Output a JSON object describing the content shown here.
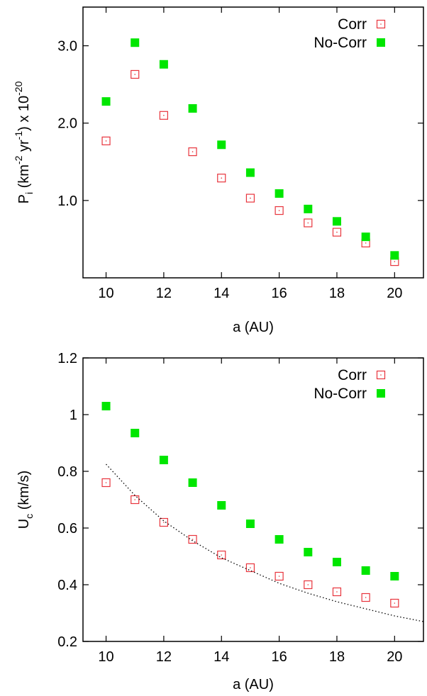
{
  "chart_data": [
    {
      "type": "scatter",
      "xlabel": "a (AU)",
      "ylabel_main": "P",
      "ylabel_sub": "i",
      "ylabel_rest": " (km",
      "ylabel_exp1": "-2",
      "ylabel_mid": " yr",
      "ylabel_exp2": "-1",
      "ylabel_tail": ") x 10",
      "ylabel_exp3": "-20",
      "xlim": [
        9.2,
        21
      ],
      "ylim": [
        0.0,
        3.5
      ],
      "x_ticks": [
        10,
        12,
        14,
        16,
        18,
        20
      ],
      "y_ticks": [
        1.0,
        2.0,
        3.0
      ],
      "y_tick_labels": [
        "1.0",
        "2.0",
        "3.0"
      ],
      "grid": false,
      "legend_position": "top-right",
      "series": [
        {
          "name": "Corr",
          "marker": "open-square",
          "color": "#e8343c",
          "x": [
            10,
            11,
            12,
            13,
            14,
            15,
            16,
            17,
            18,
            19,
            20
          ],
          "y": [
            1.77,
            2.63,
            2.1,
            1.63,
            1.29,
            1.03,
            0.87,
            0.71,
            0.59,
            0.45,
            0.21
          ]
        },
        {
          "name": "No-Corr",
          "marker": "filled-square",
          "color": "#00e600",
          "x": [
            10,
            11,
            12,
            13,
            14,
            15,
            16,
            17,
            18,
            19,
            20
          ],
          "y": [
            2.28,
            3.04,
            2.76,
            2.19,
            1.72,
            1.36,
            1.09,
            0.89,
            0.73,
            0.53,
            0.29
          ]
        }
      ]
    },
    {
      "type": "scatter",
      "xlabel": "a (AU)",
      "ylabel_main": "U",
      "ylabel_sub": "c",
      "ylabel_rest": " (km/s)",
      "xlim": [
        9.2,
        21
      ],
      "ylim": [
        0.2,
        1.2
      ],
      "x_ticks": [
        10,
        12,
        14,
        16,
        18,
        20
      ],
      "y_ticks": [
        0.2,
        0.4,
        0.6,
        0.8,
        1.0,
        1.2
      ],
      "y_tick_labels": [
        "0.2",
        "0.4",
        "0.6",
        "0.8",
        "1",
        "1.2"
      ],
      "grid": false,
      "legend_position": "top-right",
      "series": [
        {
          "name": "Corr",
          "marker": "open-square",
          "color": "#e8343c",
          "x": [
            10,
            11,
            12,
            13,
            14,
            15,
            16,
            17,
            18,
            19,
            20
          ],
          "y": [
            0.76,
            0.7,
            0.62,
            0.56,
            0.505,
            0.46,
            0.43,
            0.4,
            0.375,
            0.355,
            0.335
          ]
        },
        {
          "name": "No-Corr",
          "marker": "filled-square",
          "color": "#00e600",
          "x": [
            10,
            11,
            12,
            13,
            14,
            15,
            16,
            17,
            18,
            19,
            20
          ],
          "y": [
            1.03,
            0.935,
            0.84,
            0.76,
            0.68,
            0.615,
            0.56,
            0.515,
            0.48,
            0.45,
            0.43
          ]
        },
        {
          "marker": "dotted-line",
          "color": "#000000",
          "x": [
            10,
            11,
            12,
            13,
            14,
            15,
            16,
            17,
            18,
            19,
            20,
            21
          ],
          "y": [
            0.825,
            0.715,
            0.625,
            0.555,
            0.495,
            0.45,
            0.405,
            0.37,
            0.34,
            0.315,
            0.29,
            0.27
          ]
        }
      ]
    }
  ]
}
